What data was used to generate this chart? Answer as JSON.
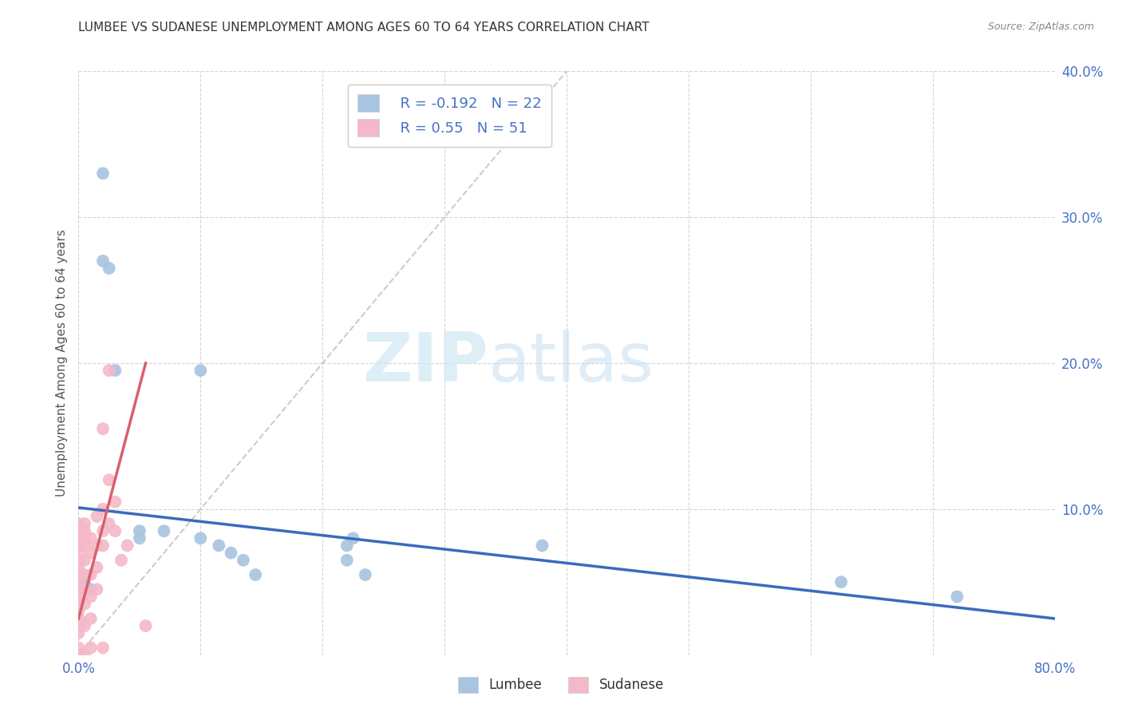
{
  "title": "LUMBEE VS SUDANESE UNEMPLOYMENT AMONG AGES 60 TO 64 YEARS CORRELATION CHART",
  "source": "Source: ZipAtlas.com",
  "ylabel": "Unemployment Among Ages 60 to 64 years",
  "xlim": [
    0,
    0.8
  ],
  "ylim": [
    0,
    0.4
  ],
  "xticks": [
    0.0,
    0.1,
    0.2,
    0.3,
    0.4,
    0.5,
    0.6,
    0.7,
    0.8
  ],
  "xtick_labels": [
    "0.0%",
    "",
    "",
    "",
    "",
    "",
    "",
    "",
    "80.0%"
  ],
  "yticks": [
    0.0,
    0.1,
    0.2,
    0.3,
    0.4
  ],
  "ytick_labels": [
    "",
    "10.0%",
    "20.0%",
    "30.0%",
    "40.0%"
  ],
  "lumbee_R": -0.192,
  "lumbee_N": 22,
  "sudanese_R": 0.55,
  "sudanese_N": 51,
  "lumbee_color": "#a8c4e0",
  "sudanese_color": "#f4b8c8",
  "lumbee_line_color": "#3a6bbd",
  "sudanese_line_color": "#d9606a",
  "diagonal_color": "#c0c0c0",
  "watermark_zip": "ZIP",
  "watermark_atlas": "atlas",
  "lumbee_line": [
    0.0,
    0.101,
    0.8,
    0.025
  ],
  "sudanese_line": [
    0.0,
    0.025,
    0.055,
    0.2
  ],
  "lumbee_points": [
    [
      0.02,
      0.33
    ],
    [
      0.02,
      0.27
    ],
    [
      0.025,
      0.265
    ],
    [
      0.03,
      0.195
    ],
    [
      0.05,
      0.085
    ],
    [
      0.05,
      0.08
    ],
    [
      0.07,
      0.085
    ],
    [
      0.1,
      0.195
    ],
    [
      0.1,
      0.08
    ],
    [
      0.115,
      0.075
    ],
    [
      0.125,
      0.07
    ],
    [
      0.135,
      0.065
    ],
    [
      0.145,
      0.055
    ],
    [
      0.22,
      0.075
    ],
    [
      0.22,
      0.065
    ],
    [
      0.225,
      0.08
    ],
    [
      0.235,
      0.055
    ],
    [
      0.38,
      0.075
    ],
    [
      0.625,
      0.05
    ],
    [
      0.72,
      0.04
    ],
    [
      0.005,
      0.05
    ],
    [
      0.01,
      0.045
    ]
  ],
  "sudanese_points": [
    [
      0.0,
      0.09
    ],
    [
      0.0,
      0.085
    ],
    [
      0.0,
      0.08
    ],
    [
      0.0,
      0.075
    ],
    [
      0.0,
      0.07
    ],
    [
      0.0,
      0.065
    ],
    [
      0.0,
      0.06
    ],
    [
      0.0,
      0.055
    ],
    [
      0.0,
      0.05
    ],
    [
      0.0,
      0.045
    ],
    [
      0.0,
      0.04
    ],
    [
      0.0,
      0.035
    ],
    [
      0.0,
      0.03
    ],
    [
      0.0,
      0.025
    ],
    [
      0.0,
      0.02
    ],
    [
      0.0,
      0.015
    ],
    [
      0.005,
      0.09
    ],
    [
      0.005,
      0.085
    ],
    [
      0.005,
      0.08
    ],
    [
      0.005,
      0.075
    ],
    [
      0.005,
      0.065
    ],
    [
      0.005,
      0.055
    ],
    [
      0.005,
      0.045
    ],
    [
      0.005,
      0.035
    ],
    [
      0.005,
      0.02
    ],
    [
      0.01,
      0.08
    ],
    [
      0.01,
      0.07
    ],
    [
      0.01,
      0.055
    ],
    [
      0.01,
      0.04
    ],
    [
      0.01,
      0.025
    ],
    [
      0.015,
      0.095
    ],
    [
      0.015,
      0.075
    ],
    [
      0.015,
      0.06
    ],
    [
      0.015,
      0.045
    ],
    [
      0.02,
      0.155
    ],
    [
      0.02,
      0.1
    ],
    [
      0.02,
      0.085
    ],
    [
      0.02,
      0.075
    ],
    [
      0.025,
      0.195
    ],
    [
      0.025,
      0.12
    ],
    [
      0.025,
      0.09
    ],
    [
      0.03,
      0.105
    ],
    [
      0.03,
      0.085
    ],
    [
      0.035,
      0.065
    ],
    [
      0.04,
      0.075
    ],
    [
      0.055,
      0.02
    ],
    [
      0.01,
      0.005
    ],
    [
      0.02,
      0.005
    ],
    [
      0.0,
      0.005
    ],
    [
      0.005,
      0.0
    ],
    [
      0.0,
      0.0
    ]
  ]
}
